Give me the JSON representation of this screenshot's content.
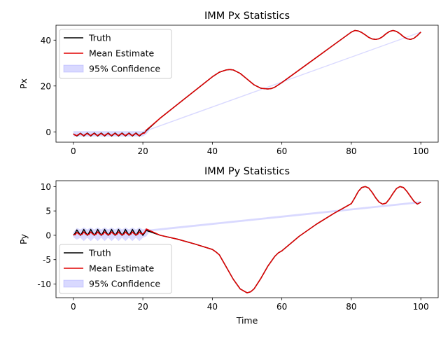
{
  "chart_data": [
    {
      "type": "line",
      "title": "IMM Px Statistics",
      "xlabel": "",
      "ylabel": "Px",
      "xlim": [
        -5,
        105
      ],
      "ylim": [
        -4.5,
        46.5
      ],
      "xticks": [
        0,
        20,
        40,
        60,
        80,
        100
      ],
      "yticks": [
        0,
        20,
        40
      ],
      "grid": false,
      "legend_position": "upper left",
      "legend": [
        "Truth",
        "Mean Estimate",
        "95% Confidence"
      ],
      "series": [
        {
          "name": "Truth",
          "color": "#000000",
          "x": [
            0,
            0.5,
            1,
            1.5,
            2,
            2.5,
            3,
            3.5,
            4,
            4.5,
            5,
            5.5,
            6,
            6.5,
            7,
            7.5,
            8,
            8.5,
            9,
            9.5,
            10,
            10.5,
            11,
            11.5,
            12,
            12.5,
            13,
            13.5,
            14,
            14.5,
            15,
            15.5,
            16,
            16.5,
            17,
            17.5,
            18,
            18.5,
            19,
            19.5,
            20,
            20.5,
            21,
            25,
            30,
            35,
            40,
            42,
            44,
            45,
            46,
            48,
            50,
            52,
            54,
            56,
            57,
            58,
            60,
            65,
            70,
            75,
            80,
            81,
            82,
            83,
            84,
            85,
            86,
            87,
            88,
            89,
            90,
            91,
            92,
            93,
            94,
            95,
            96,
            97,
            98,
            99,
            100
          ],
          "y": [
            -1,
            -1.3,
            -1.8,
            -1.3,
            -0.6,
            -1.1,
            -1.8,
            -1.2,
            -0.5,
            -1.1,
            -1.8,
            -1.2,
            -0.5,
            -1.1,
            -1.8,
            -1.2,
            -0.5,
            -1.1,
            -1.8,
            -1.2,
            -0.5,
            -1.1,
            -1.8,
            -1.2,
            -0.5,
            -1.1,
            -1.8,
            -1.2,
            -0.5,
            -1.1,
            -1.8,
            -1.2,
            -0.5,
            -1.1,
            -1.8,
            -1.2,
            -0.5,
            -1.1,
            -1.8,
            -1.2,
            -0.5,
            -0.3,
            0.5,
            6,
            12,
            18,
            24,
            26,
            27,
            27.2,
            27,
            25.5,
            23,
            20.5,
            19,
            18.7,
            18.9,
            19.5,
            21.5,
            27,
            32.5,
            38,
            43.5,
            44.2,
            44,
            43.3,
            42.3,
            41.2,
            40.5,
            40.3,
            40.6,
            41.5,
            42.8,
            43.8,
            44.2,
            43.8,
            42.8,
            41.5,
            40.6,
            40.3,
            40.8,
            42,
            43.5
          ]
        },
        {
          "name": "Mean Estimate",
          "color": "#e00000",
          "x": [
            0,
            0.5,
            1,
            1.5,
            2,
            2.5,
            3,
            3.5,
            4,
            4.5,
            5,
            5.5,
            6,
            6.5,
            7,
            7.5,
            8,
            8.5,
            9,
            9.5,
            10,
            10.5,
            11,
            11.5,
            12,
            12.5,
            13,
            13.5,
            14,
            14.5,
            15,
            15.5,
            16,
            16.5,
            17,
            17.5,
            18,
            18.5,
            19,
            19.5,
            20,
            20.5,
            21,
            25,
            30,
            35,
            40,
            42,
            44,
            45,
            46,
            48,
            50,
            52,
            54,
            56,
            57,
            58,
            60,
            65,
            70,
            75,
            80,
            81,
            82,
            83,
            84,
            85,
            86,
            87,
            88,
            89,
            90,
            91,
            92,
            93,
            94,
            95,
            96,
            97,
            98,
            99,
            100
          ],
          "y": [
            -0.8,
            -1.5,
            -1.6,
            -1.1,
            -0.7,
            -1.3,
            -1.6,
            -1,
            -0.7,
            -1.3,
            -1.6,
            -1,
            -0.7,
            -1.3,
            -1.6,
            -1,
            -0.7,
            -1.3,
            -1.6,
            -1,
            -0.7,
            -1.3,
            -1.6,
            -1,
            -0.7,
            -1.3,
            -1.6,
            -1,
            -0.7,
            -1.3,
            -1.6,
            -1,
            -0.7,
            -1.3,
            -1.6,
            -1,
            -0.7,
            -1.3,
            -1.6,
            -1,
            -0.7,
            -0.5,
            0.8,
            6,
            12,
            18,
            24,
            26,
            27,
            27.2,
            27,
            25.5,
            23,
            20.5,
            19,
            18.7,
            18.9,
            19.5,
            21.5,
            27,
            32.5,
            38,
            43.5,
            44.2,
            44,
            43.3,
            42.3,
            41.2,
            40.5,
            40.3,
            40.6,
            41.5,
            42.8,
            43.8,
            44.2,
            43.8,
            42.8,
            41.5,
            40.6,
            40.3,
            40.8,
            42,
            43.5
          ]
        }
      ],
      "confidence_band": {
        "name": "95% Confidence",
        "color": "#8080ff",
        "x": [
          0,
          2,
          4,
          6,
          8,
          10,
          12,
          14,
          16,
          18,
          20,
          21,
          22,
          100
        ],
        "lower": [
          -2,
          -2,
          -2,
          -2,
          -2,
          -2,
          -2,
          -2,
          -2,
          -2,
          -2,
          -1,
          0.8,
          43.3
        ],
        "upper": [
          0.3,
          0.3,
          0.3,
          0.3,
          0.3,
          0.3,
          0.3,
          0.3,
          0.3,
          0.3,
          0.3,
          1.2,
          1.3,
          43.7
        ]
      }
    },
    {
      "type": "line",
      "title": "IMM Py Statistics",
      "xlabel": "Time",
      "ylabel": "Py",
      "xlim": [
        -5,
        105
      ],
      "ylim": [
        -12.8,
        11.2
      ],
      "xticks": [
        0,
        20,
        40,
        60,
        80,
        100
      ],
      "yticks": [
        -10,
        -5,
        0,
        5,
        10
      ],
      "grid": false,
      "legend_position": "lower left",
      "legend": [
        "Truth",
        "Mean Estimate",
        "95% Confidence"
      ],
      "series": [
        {
          "name": "Truth",
          "color": "#000000",
          "x": [
            0,
            0.5,
            1,
            1.5,
            2,
            2.5,
            3,
            3.5,
            4,
            4.5,
            5,
            5.5,
            6,
            6.5,
            7,
            7.5,
            8,
            8.5,
            9,
            9.5,
            10,
            10.5,
            11,
            11.5,
            12,
            12.5,
            13,
            13.5,
            14,
            14.5,
            15,
            15.5,
            16,
            16.5,
            17,
            17.5,
            18,
            18.5,
            19,
            19.5,
            20,
            20.5,
            21,
            25,
            30,
            35,
            40,
            41,
            42,
            44,
            46,
            48,
            50,
            51,
            52,
            54,
            56,
            58,
            59,
            60,
            65,
            70,
            75,
            80,
            81,
            82,
            83,
            84,
            85,
            86,
            87,
            88,
            89,
            90,
            91,
            92,
            93,
            94,
            95,
            96,
            97,
            98,
            99,
            100
          ],
          "y": [
            0,
            0.4,
            1.1,
            0.6,
            0,
            0.5,
            1.2,
            0.6,
            0,
            0.5,
            1.2,
            0.6,
            0,
            0.5,
            1.2,
            0.6,
            0,
            0.5,
            1.2,
            0.6,
            0,
            0.5,
            1.2,
            0.6,
            0,
            0.5,
            1.2,
            0.6,
            0,
            0.5,
            1.2,
            0.6,
            0,
            0.5,
            1.2,
            0.6,
            0,
            0.5,
            1.2,
            0.6,
            0,
            0.5,
            1,
            0,
            -0.8,
            -1.8,
            -2.9,
            -3.4,
            -4,
            -6.5,
            -9,
            -11,
            -11.8,
            -11.6,
            -11,
            -8.8,
            -6.3,
            -4.3,
            -3.6,
            -3.2,
            -0.2,
            2.3,
            4.5,
            6.5,
            7.7,
            9,
            9.8,
            10,
            9.7,
            8.8,
            7.7,
            6.8,
            6.4,
            6.6,
            7.5,
            8.6,
            9.6,
            10,
            9.8,
            9,
            8,
            7,
            6.4,
            6.8
          ]
        },
        {
          "name": "Mean Estimate",
          "color": "#e00000",
          "x": [
            0,
            0.5,
            1,
            1.5,
            2,
            2.5,
            3,
            3.5,
            4,
            4.5,
            5,
            5.5,
            6,
            6.5,
            7,
            7.5,
            8,
            8.5,
            9,
            9.5,
            10,
            10.5,
            11,
            11.5,
            12,
            12.5,
            13,
            13.5,
            14,
            14.5,
            15,
            15.5,
            16,
            16.5,
            17,
            17.5,
            18,
            18.5,
            19,
            19.5,
            20,
            20.5,
            21,
            25,
            30,
            35,
            40,
            41,
            42,
            44,
            46,
            48,
            50,
            51,
            52,
            54,
            56,
            58,
            59,
            60,
            65,
            70,
            75,
            80,
            81,
            82,
            83,
            84,
            85,
            86,
            87,
            88,
            89,
            90,
            91,
            92,
            93,
            94,
            95,
            96,
            97,
            98,
            99,
            100
          ],
          "y": [
            0.2,
            0.1,
            0.6,
            0.3,
            0.1,
            0.2,
            0.7,
            0.3,
            0.1,
            0.2,
            0.7,
            0.3,
            0.1,
            0.2,
            0.7,
            0.3,
            0.1,
            0.2,
            0.7,
            0.3,
            0.1,
            0.2,
            0.7,
            0.3,
            0.1,
            0.2,
            0.7,
            0.3,
            0.1,
            0.2,
            0.7,
            0.3,
            0.1,
            0.2,
            0.7,
            0.3,
            0.1,
            0.2,
            0.7,
            0.3,
            0.3,
            0.6,
            1.3,
            0,
            -0.8,
            -1.8,
            -2.9,
            -3.4,
            -4,
            -6.5,
            -9,
            -11,
            -11.8,
            -11.6,
            -11,
            -8.8,
            -6.3,
            -4.3,
            -3.6,
            -3.2,
            -0.2,
            2.3,
            4.5,
            6.5,
            7.7,
            9,
            9.8,
            10,
            9.7,
            8.8,
            7.7,
            6.8,
            6.4,
            6.6,
            7.5,
            8.6,
            9.6,
            10,
            9.8,
            9,
            8,
            7,
            6.4,
            6.8
          ]
        }
      ],
      "confidence_band": {
        "name": "95% Confidence",
        "color": "#8080ff",
        "x": [
          0,
          1,
          2,
          3,
          4,
          5,
          6,
          7,
          8,
          9,
          10,
          11,
          12,
          13,
          14,
          15,
          16,
          17,
          18,
          19,
          20,
          21,
          22,
          100
        ],
        "lower": [
          -0.4,
          -0.9,
          -0.5,
          -1.2,
          -0.5,
          -1.2,
          -0.5,
          -1.2,
          -0.5,
          -1.2,
          -0.5,
          -1.2,
          -0.5,
          -1.2,
          -0.5,
          -1.2,
          -0.5,
          -1.2,
          -0.5,
          -1.2,
          -0.5,
          -0.2,
          0.8,
          6.6
        ],
        "upper": [
          0.6,
          1.5,
          1.2,
          1.6,
          1.2,
          1.6,
          1.2,
          1.6,
          1.2,
          1.6,
          1.2,
          1.6,
          1.2,
          1.6,
          1.2,
          1.6,
          1.2,
          1.6,
          1.2,
          1.6,
          1.2,
          1.4,
          1.2,
          7
        ]
      }
    }
  ]
}
